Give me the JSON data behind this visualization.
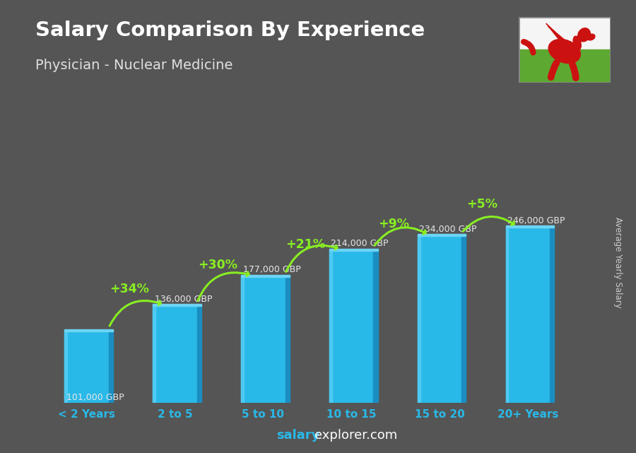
{
  "title": "Salary Comparison By Experience",
  "subtitle": "Physician - Nuclear Medicine",
  "categories": [
    "< 2 Years",
    "2 to 5",
    "5 to 10",
    "10 to 15",
    "15 to 20",
    "20+ Years"
  ],
  "values": [
    101000,
    136000,
    177000,
    214000,
    234000,
    246000
  ],
  "salary_labels": [
    "101,000 GBP",
    "136,000 GBP",
    "177,000 GBP",
    "214,000 GBP",
    "234,000 GBP",
    "246,000 GBP"
  ],
  "pct_labels": [
    "+34%",
    "+30%",
    "+21%",
    "+9%",
    "+5%"
  ],
  "bar_color_main": "#29b9e8",
  "bar_color_right": "#1a8ec0",
  "bar_color_top": "#6dd4f5",
  "bar_color_left_highlight": "#55cef5",
  "bg_color": "#555555",
  "title_color": "#ffffff",
  "subtitle_color": "#e0e0e0",
  "salary_label_color": "#e8e8e8",
  "pct_color": "#88ee22",
  "tick_color": "#29b9e8",
  "footer_salary_color": "#29b9e8",
  "footer_explorer_color": "#ffffff",
  "ylabel": "Average Yearly Salary",
  "ylabel_color": "#cccccc",
  "flag_white": "#f5f5f5",
  "flag_green": "#5da831",
  "figsize": [
    9.0,
    6.41
  ]
}
